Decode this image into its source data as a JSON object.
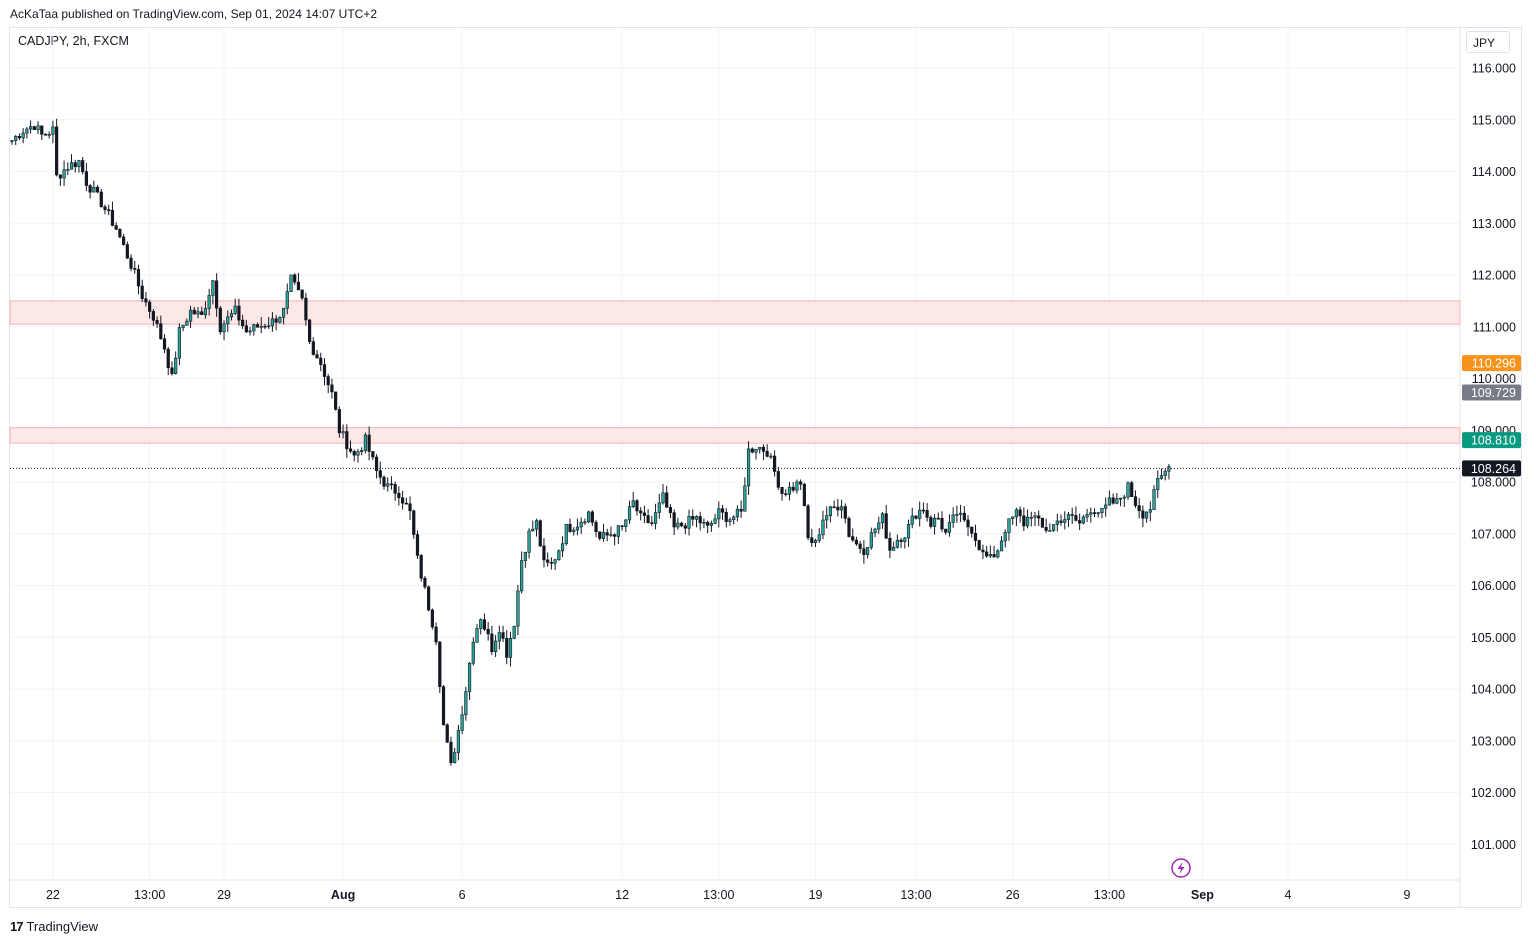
{
  "header": {
    "published_line": "AcKaTaa published on TradingView.com, Sep 01, 2024 14:07 UTC+2",
    "symbol_line": "CADJPY, 2h, FXCM",
    "currency": "JPY"
  },
  "footer": {
    "logo_text": "17",
    "brand": "TradingView"
  },
  "colors": {
    "up_body": "#26a69a",
    "down_body": "#131722",
    "wick": "#131722",
    "zone_fill": "#fde8e8",
    "zone_border": "#f5b4b4",
    "grid": "#f0f3fa",
    "label_orange": "#f7931a",
    "label_gray": "#787b86",
    "label_teal": "#089981",
    "label_black": "#131722"
  },
  "icons": {
    "alert": "lightning-bolt-icon"
  },
  "chart_data": {
    "type": "candlestick",
    "y_range": [
      100.0,
      116.5
    ],
    "y_ticks": [
      "116.000",
      "115.000",
      "114.000",
      "113.000",
      "112.000",
      "111.000",
      "110.000",
      "109.000",
      "108.000",
      "107.000",
      "106.000",
      "105.000",
      "104.000",
      "103.000",
      "102.000",
      "101.000"
    ],
    "x_ticks": [
      {
        "label": "22",
        "bold": false,
        "i": 11
      },
      {
        "label": "13:00",
        "bold": false,
        "i": 37
      },
      {
        "label": "29",
        "bold": false,
        "i": 57
      },
      {
        "label": "Aug",
        "bold": true,
        "i": 89
      },
      {
        "label": "6",
        "bold": false,
        "i": 121
      },
      {
        "label": "12",
        "bold": false,
        "i": 164
      },
      {
        "label": "13:00",
        "bold": false,
        "i": 190
      },
      {
        "label": "19",
        "bold": false,
        "i": 216
      },
      {
        "label": "13:00",
        "bold": false,
        "i": 243
      },
      {
        "label": "26",
        "bold": false,
        "i": 269
      },
      {
        "label": "13:00",
        "bold": false,
        "i": 295
      },
      {
        "label": "Sep",
        "bold": true,
        "i": 320
      },
      {
        "label": "4",
        "bold": false,
        "i": 343
      },
      {
        "label": "9",
        "bold": false,
        "i": 375
      }
    ],
    "zones": [
      {
        "from": 111.05,
        "to": 111.5
      },
      {
        "from": 108.75,
        "to": 109.05
      }
    ],
    "current_price": 108.264,
    "price_labels": [
      {
        "value": "110.296",
        "level": 110.296,
        "color": "#f7931a"
      },
      {
        "value": "109.729",
        "level": 109.729,
        "color": "#787b86"
      },
      {
        "value": "108.810",
        "level": 108.81,
        "color": "#089981"
      },
      {
        "value": "108.264",
        "level": 108.264,
        "color": "#131722"
      }
    ],
    "waypoints": [
      [
        0,
        114.6
      ],
      [
        3,
        114.8
      ],
      [
        6,
        114.9
      ],
      [
        8,
        114.7
      ],
      [
        11,
        114.8
      ],
      [
        12,
        113.9
      ],
      [
        15,
        114.1
      ],
      [
        18,
        114.2
      ],
      [
        20,
        113.8
      ],
      [
        24,
        113.4
      ],
      [
        28,
        112.9
      ],
      [
        32,
        112.2
      ],
      [
        35,
        111.6
      ],
      [
        38,
        111.2
      ],
      [
        41,
        110.6
      ],
      [
        43,
        110.0
      ],
      [
        45,
        110.9
      ],
      [
        48,
        111.3
      ],
      [
        51,
        111.2
      ],
      [
        54,
        111.9
      ],
      [
        56,
        111.0
      ],
      [
        60,
        111.3
      ],
      [
        63,
        110.9
      ],
      [
        66,
        111.0
      ],
      [
        70,
        111.1
      ],
      [
        73,
        111.3
      ],
      [
        75,
        111.9
      ],
      [
        78,
        111.5
      ],
      [
        80,
        110.7
      ],
      [
        83,
        110.3
      ],
      [
        86,
        109.7
      ],
      [
        88,
        109.0
      ],
      [
        92,
        108.5
      ],
      [
        95,
        108.8
      ],
      [
        98,
        108.2
      ],
      [
        101,
        107.9
      ],
      [
        104,
        107.8
      ],
      [
        107,
        107.4
      ],
      [
        109,
        106.5
      ],
      [
        112,
        105.6
      ],
      [
        114,
        105.0
      ],
      [
        116,
        103.3
      ],
      [
        118,
        102.5
      ],
      [
        120,
        103.2
      ],
      [
        122,
        104.0
      ],
      [
        124,
        105.0
      ],
      [
        126,
        105.4
      ],
      [
        129,
        104.8
      ],
      [
        131,
        105.2
      ],
      [
        133,
        104.7
      ],
      [
        135,
        105.3
      ],
      [
        137,
        106.5
      ],
      [
        139,
        107.0
      ],
      [
        141,
        107.2
      ],
      [
        143,
        106.4
      ],
      [
        145,
        106.4
      ],
      [
        147,
        106.7
      ],
      [
        149,
        107.1
      ],
      [
        152,
        107.2
      ],
      [
        155,
        107.4
      ],
      [
        158,
        106.9
      ],
      [
        161,
        107.0
      ],
      [
        164,
        107.1
      ],
      [
        167,
        107.6
      ],
      [
        169,
        107.3
      ],
      [
        172,
        107.2
      ],
      [
        175,
        107.7
      ],
      [
        178,
        107.1
      ],
      [
        181,
        107.2
      ],
      [
        184,
        107.3
      ],
      [
        187,
        107.1
      ],
      [
        190,
        107.4
      ],
      [
        193,
        107.3
      ],
      [
        196,
        107.4
      ],
      [
        198,
        108.6
      ],
      [
        200,
        108.7
      ],
      [
        203,
        108.6
      ],
      [
        205,
        108.2
      ],
      [
        207,
        107.8
      ],
      [
        210,
        107.9
      ],
      [
        212,
        108.0
      ],
      [
        214,
        106.9
      ],
      [
        216,
        106.8
      ],
      [
        218,
        107.3
      ],
      [
        221,
        107.5
      ],
      [
        223,
        107.6
      ],
      [
        225,
        107.0
      ],
      [
        227,
        106.8
      ],
      [
        229,
        106.7
      ],
      [
        232,
        107.1
      ],
      [
        234,
        107.3
      ],
      [
        236,
        106.7
      ],
      [
        238,
        106.9
      ],
      [
        240,
        107.0
      ],
      [
        243,
        107.4
      ],
      [
        245,
        107.5
      ],
      [
        247,
        107.2
      ],
      [
        249,
        107.3
      ],
      [
        251,
        107.0
      ],
      [
        254,
        107.4
      ],
      [
        256,
        107.2
      ],
      [
        258,
        107.1
      ],
      [
        261,
        106.6
      ],
      [
        263,
        106.5
      ],
      [
        265,
        106.7
      ],
      [
        267,
        107.1
      ],
      [
        270,
        107.4
      ],
      [
        272,
        107.2
      ],
      [
        274,
        107.4
      ],
      [
        277,
        107.1
      ],
      [
        279,
        107.1
      ],
      [
        282,
        107.3
      ],
      [
        285,
        107.3
      ],
      [
        287,
        107.2
      ],
      [
        290,
        107.5
      ],
      [
        293,
        107.4
      ],
      [
        295,
        107.6
      ],
      [
        297,
        107.6
      ],
      [
        300,
        107.9
      ],
      [
        302,
        107.6
      ],
      [
        304,
        107.4
      ],
      [
        306,
        107.5
      ],
      [
        308,
        108.0
      ],
      [
        310,
        108.2
      ],
      [
        311,
        108.3
      ]
    ]
  }
}
